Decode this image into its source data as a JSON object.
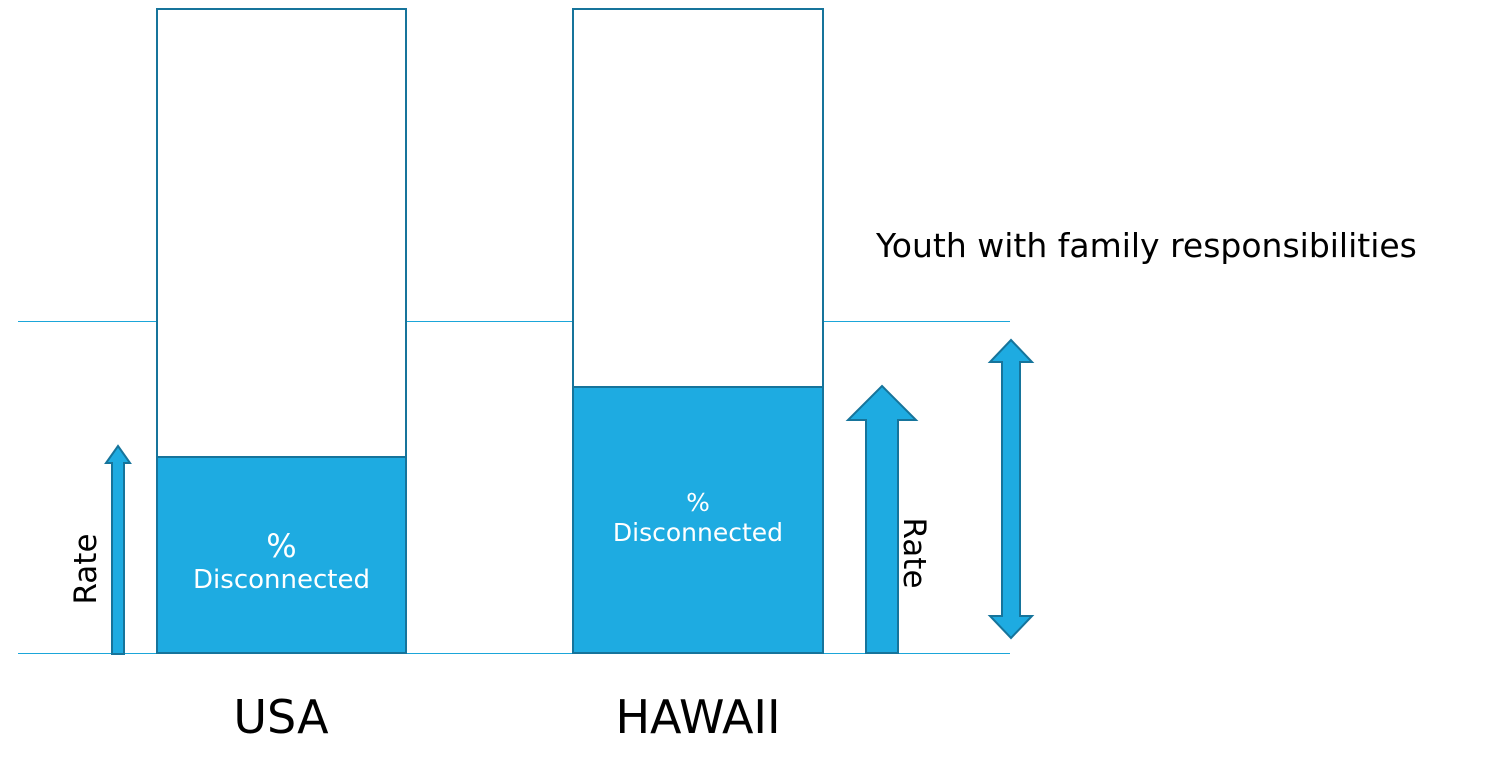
{
  "annotation": "Youth with family responsibilities",
  "bars": [
    {
      "label": "USA",
      "fill_line1": "%",
      "fill_line2": "Disconnected",
      "fill_fraction": 0.305
    },
    {
      "label": "HAWAII",
      "fill_line1": "%",
      "fill_line2": "Disconnected",
      "fill_fraction": 0.415
    }
  ],
  "arrow_labels": {
    "usa_rate": "Rate",
    "hawaii_rate": "Rate"
  },
  "colors": {
    "accent": "#1eabe1",
    "outline": "#16749b",
    "rule": "#1ba6d9"
  }
}
